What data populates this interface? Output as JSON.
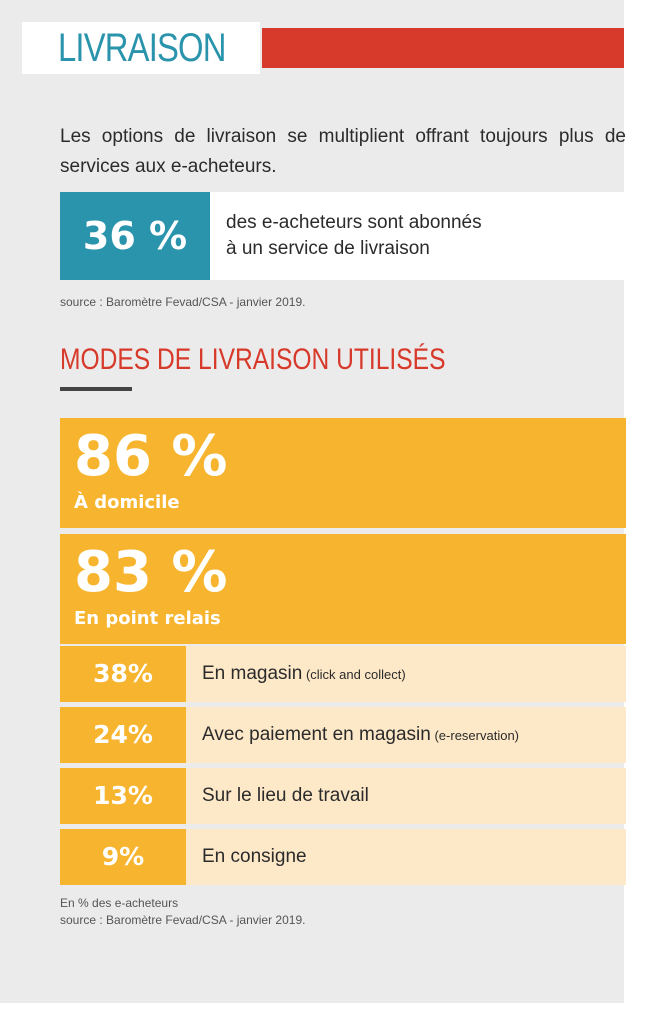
{
  "header": {
    "title": "LIVRAISON"
  },
  "intro": {
    "text": "Les options de livraison se multiplient offrant toujours plus de services aux e-acheteurs."
  },
  "highlight": {
    "value": "36 %",
    "line1": "des e-acheteurs sont abonnés",
    "line2": "à un service de livraison",
    "source": "source : Baromètre Fevad/CSA - janvier 2019."
  },
  "section": {
    "title": "MODES DE LIVRAISON UTILISÉS"
  },
  "chart_data": {
    "type": "bar",
    "title": "MODES DE LIVRAISON UTILISÉS",
    "unit": "%",
    "categories": [
      "À domicile",
      "En point relais",
      "En magasin",
      "Avec paiement en magasin",
      "Sur le lieu de travail",
      "En consigne"
    ],
    "values": [
      86,
      83,
      38,
      24,
      13,
      9
    ],
    "value_labels": [
      "86 %",
      "83 %",
      "38%",
      "24%",
      "13%",
      "9%"
    ],
    "notes": [
      "",
      "",
      "(click and collect)",
      "(e-reservation)",
      "",
      ""
    ]
  },
  "footer": {
    "note": "En % des e-acheteurs",
    "source": "source : Baromètre Fevad/CSA - janvier 2019."
  },
  "colors": {
    "teal": "#2a94ad",
    "red": "#d7392a",
    "orange": "#f7b52f",
    "light_orange": "#fde8c8",
    "panel": "#ebebeb"
  }
}
